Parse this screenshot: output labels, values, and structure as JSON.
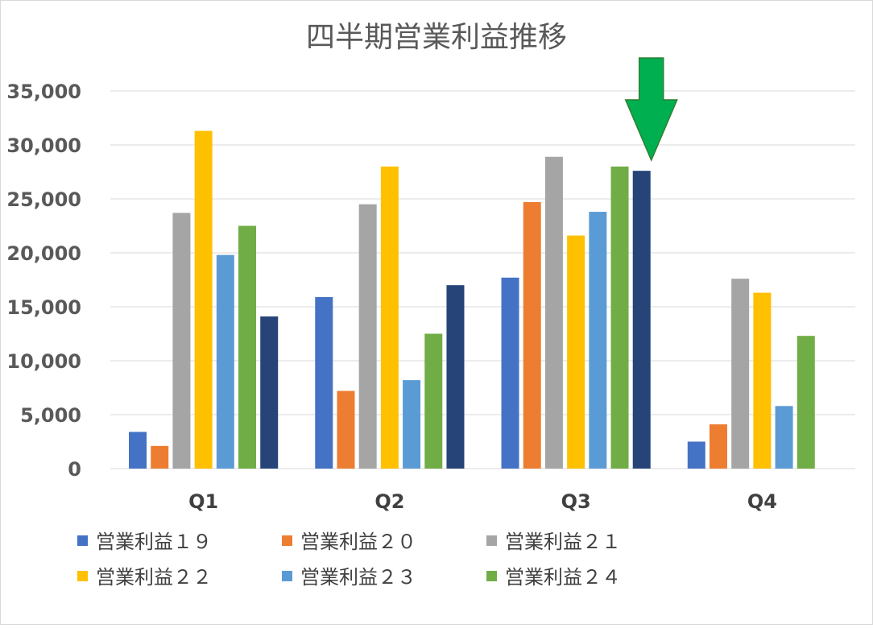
{
  "chart_data": {
    "type": "bar",
    "title": "四半期営業利益推移",
    "categories": [
      "Q1",
      "Q2",
      "Q3",
      "Q4"
    ],
    "ylim": [
      0,
      35000
    ],
    "yticks": [
      "0",
      "5,000",
      "10,000",
      "15,000",
      "20,000",
      "25,000",
      "30,000",
      "35,000"
    ],
    "grid": true,
    "legend": "bottom",
    "series": [
      {
        "name": "営業利益１９",
        "color": "#4472C4",
        "values": [
          3400,
          15900,
          17700,
          2500
        ]
      },
      {
        "name": "営業利益２０",
        "color": "#ED7D31",
        "values": [
          2100,
          7200,
          24700,
          4100
        ]
      },
      {
        "name": "営業利益２１",
        "color": "#A5A5A5",
        "values": [
          23700,
          24500,
          28900,
          17600
        ]
      },
      {
        "name": "営業利益２２",
        "color": "#FFC000",
        "values": [
          31300,
          28000,
          21600,
          16300
        ]
      },
      {
        "name": "営業利益２３",
        "color": "#5B9BD5",
        "values": [
          19800,
          8200,
          23800,
          5800
        ]
      },
      {
        "name": "営業利益２４",
        "color": "#70AD47",
        "values": [
          22500,
          12500,
          28000,
          12300
        ]
      },
      {
        "name": "",
        "color": "#264478",
        "values": [
          14100,
          17000,
          27600,
          null
        ]
      }
    ],
    "annotation": {
      "type": "arrow",
      "color": "#00B050",
      "points_to": "Q3"
    }
  }
}
